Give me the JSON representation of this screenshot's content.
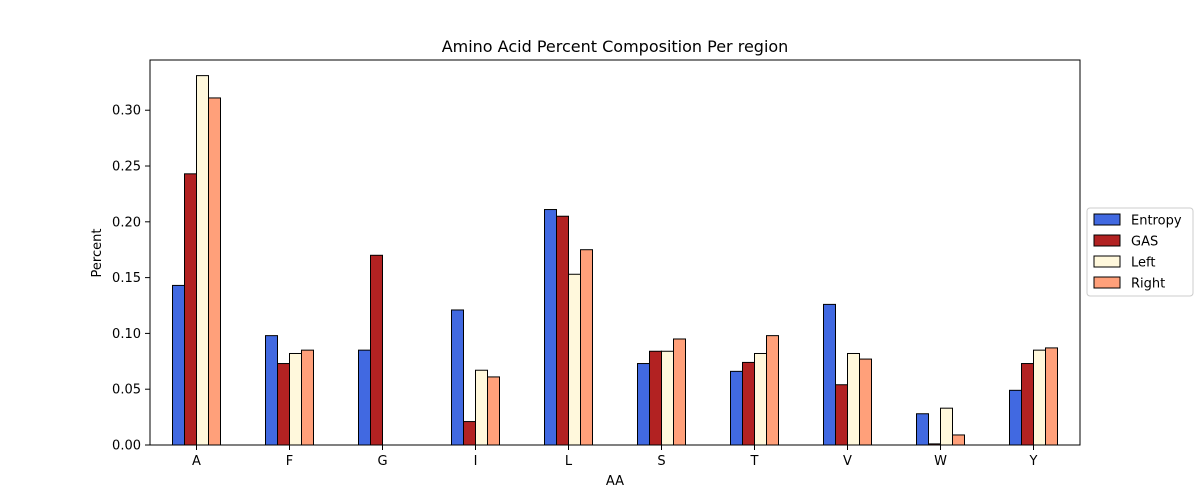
{
  "chart_data": {
    "type": "bar",
    "title": "Amino Acid Percent Composition Per region",
    "xlabel": "AA",
    "ylabel": "Percent",
    "categories": [
      "A",
      "F",
      "G",
      "I",
      "L",
      "S",
      "T",
      "V",
      "W",
      "Y"
    ],
    "ylim": [
      0,
      0.345
    ],
    "yticks": [
      "0.00",
      "0.05",
      "0.10",
      "0.15",
      "0.20",
      "0.25",
      "0.30"
    ],
    "grid": false,
    "legend_position": "right",
    "series": [
      {
        "name": "Entropy",
        "color": "#4169e1",
        "values": [
          0.143,
          0.098,
          0.085,
          0.121,
          0.211,
          0.073,
          0.066,
          0.126,
          0.028,
          0.049
        ]
      },
      {
        "name": "GAS",
        "color": "#b22222",
        "values": [
          0.243,
          0.073,
          0.17,
          0.021,
          0.205,
          0.084,
          0.074,
          0.054,
          0.001,
          0.073
        ]
      },
      {
        "name": "Left",
        "color": "#fff8dc",
        "values": [
          0.331,
          0.082,
          0.0,
          0.067,
          0.153,
          0.084,
          0.082,
          0.082,
          0.033,
          0.085
        ]
      },
      {
        "name": "Right",
        "color": "#ffa07a",
        "values": [
          0.311,
          0.085,
          0.0,
          0.061,
          0.175,
          0.095,
          0.098,
          0.077,
          0.009,
          0.087
        ]
      }
    ]
  }
}
